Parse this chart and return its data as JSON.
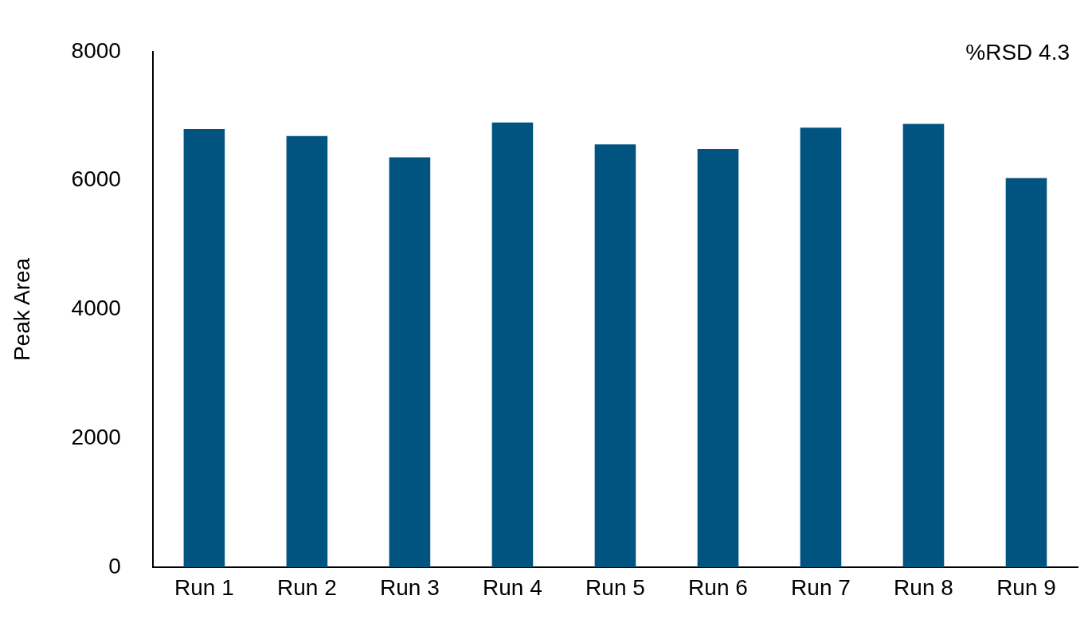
{
  "chart_data": {
    "type": "bar",
    "ylabel": "Peak Area",
    "categories": [
      "Run 1",
      "Run 2",
      "Run 3",
      "Run 4",
      "Run 5",
      "Run 6",
      "Run 7",
      "Run 8",
      "Run 9"
    ],
    "values": [
      6800,
      6690,
      6360,
      6900,
      6560,
      6490,
      6820,
      6880,
      6040
    ],
    "color": "#00547f",
    "ylim": [
      0,
      8000
    ],
    "yticks": [
      0,
      2000,
      4000,
      6000,
      8000
    ],
    "grid": false,
    "legend": false,
    "annotations": [
      "%RSD 4.3"
    ]
  }
}
